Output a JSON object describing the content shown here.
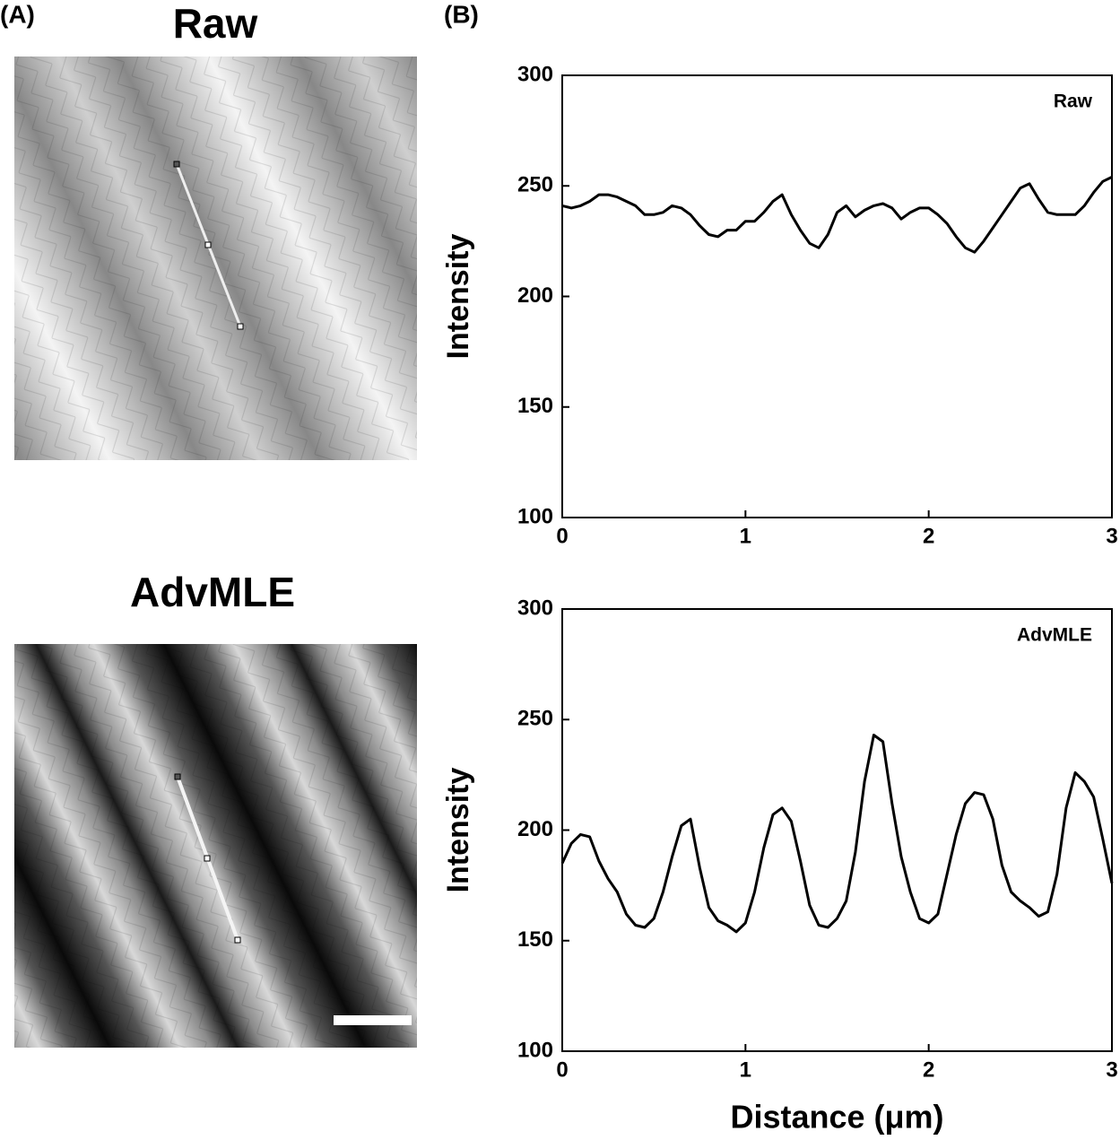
{
  "panel_a": {
    "label": "(A)",
    "images": [
      {
        "title": "Raw"
      },
      {
        "title": "AdvMLE"
      }
    ]
  },
  "panel_b": {
    "label": "(B)"
  },
  "chart_data": [
    {
      "type": "line",
      "ylabel": "Intensity",
      "legend": "upper right",
      "x": [
        0,
        0.05,
        0.1,
        0.15,
        0.2,
        0.25,
        0.3,
        0.35,
        0.4,
        0.45,
        0.5,
        0.55,
        0.6,
        0.65,
        0.7,
        0.75,
        0.8,
        0.85,
        0.9,
        0.95,
        1,
        1.05,
        1.1,
        1.15,
        1.2,
        1.25,
        1.3,
        1.35,
        1.4,
        1.45,
        1.5,
        1.55,
        1.6,
        1.65,
        1.7,
        1.75,
        1.8,
        1.85,
        1.9,
        1.95,
        2,
        2.05,
        2.1,
        2.15,
        2.2,
        2.25,
        2.3,
        2.35,
        2.4,
        2.45,
        2.5,
        2.55,
        2.6,
        2.65,
        2.7,
        2.75,
        2.8,
        2.85,
        2.9,
        2.95,
        3
      ],
      "series": [
        {
          "name": "Raw",
          "color": "#000000",
          "values": [
            241,
            240,
            241,
            243,
            246,
            246,
            245,
            243,
            241,
            237,
            237,
            238,
            241,
            240,
            237,
            232,
            228,
            227,
            230,
            230,
            234,
            234,
            238,
            243,
            246,
            237,
            230,
            224,
            222,
            228,
            238,
            241,
            236,
            239,
            241,
            242,
            240,
            235,
            238,
            240,
            240,
            237,
            233,
            227,
            222,
            220,
            225,
            231,
            237,
            243,
            249,
            251,
            244,
            238,
            237,
            237,
            237,
            241,
            247,
            252,
            254
          ]
        }
      ],
      "xlim": [
        0,
        3
      ],
      "xticks": [
        0,
        1,
        2,
        3
      ],
      "ylim": [
        100,
        300
      ],
      "yticks": [
        100,
        150,
        200,
        250,
        300
      ]
    },
    {
      "type": "line",
      "ylabel": "Intensity",
      "xlabel": "Distance (μm)",
      "legend": "upper right",
      "x": [
        0,
        0.05,
        0.1,
        0.15,
        0.2,
        0.25,
        0.3,
        0.35,
        0.4,
        0.45,
        0.5,
        0.55,
        0.6,
        0.65,
        0.7,
        0.75,
        0.8,
        0.85,
        0.9,
        0.95,
        1,
        1.05,
        1.1,
        1.15,
        1.2,
        1.25,
        1.3,
        1.35,
        1.4,
        1.45,
        1.5,
        1.55,
        1.6,
        1.65,
        1.7,
        1.75,
        1.8,
        1.85,
        1.9,
        1.95,
        2,
        2.05,
        2.1,
        2.15,
        2.2,
        2.25,
        2.3,
        2.35,
        2.4,
        2.45,
        2.5,
        2.55,
        2.6,
        2.65,
        2.7,
        2.75,
        2.8,
        2.85,
        2.9,
        2.95,
        3
      ],
      "series": [
        {
          "name": "AdvMLE",
          "color": "#000000",
          "values": [
            185,
            194,
            198,
            197,
            186,
            178,
            172,
            162,
            157,
            156,
            160,
            172,
            188,
            202,
            205,
            183,
            165,
            159,
            157,
            154,
            158,
            172,
            192,
            207,
            210,
            204,
            186,
            166,
            157,
            156,
            160,
            168,
            190,
            222,
            243,
            240,
            212,
            188,
            172,
            160,
            158,
            162,
            180,
            198,
            212,
            217,
            216,
            205,
            184,
            172,
            168,
            165,
            161,
            163,
            180,
            210,
            226,
            222,
            215,
            196,
            176
          ]
        }
      ],
      "xlim": [
        0,
        3
      ],
      "xticks": [
        0,
        1,
        2,
        3
      ],
      "ylim": [
        100,
        300
      ],
      "yticks": [
        100,
        150,
        200,
        250,
        300
      ]
    }
  ]
}
